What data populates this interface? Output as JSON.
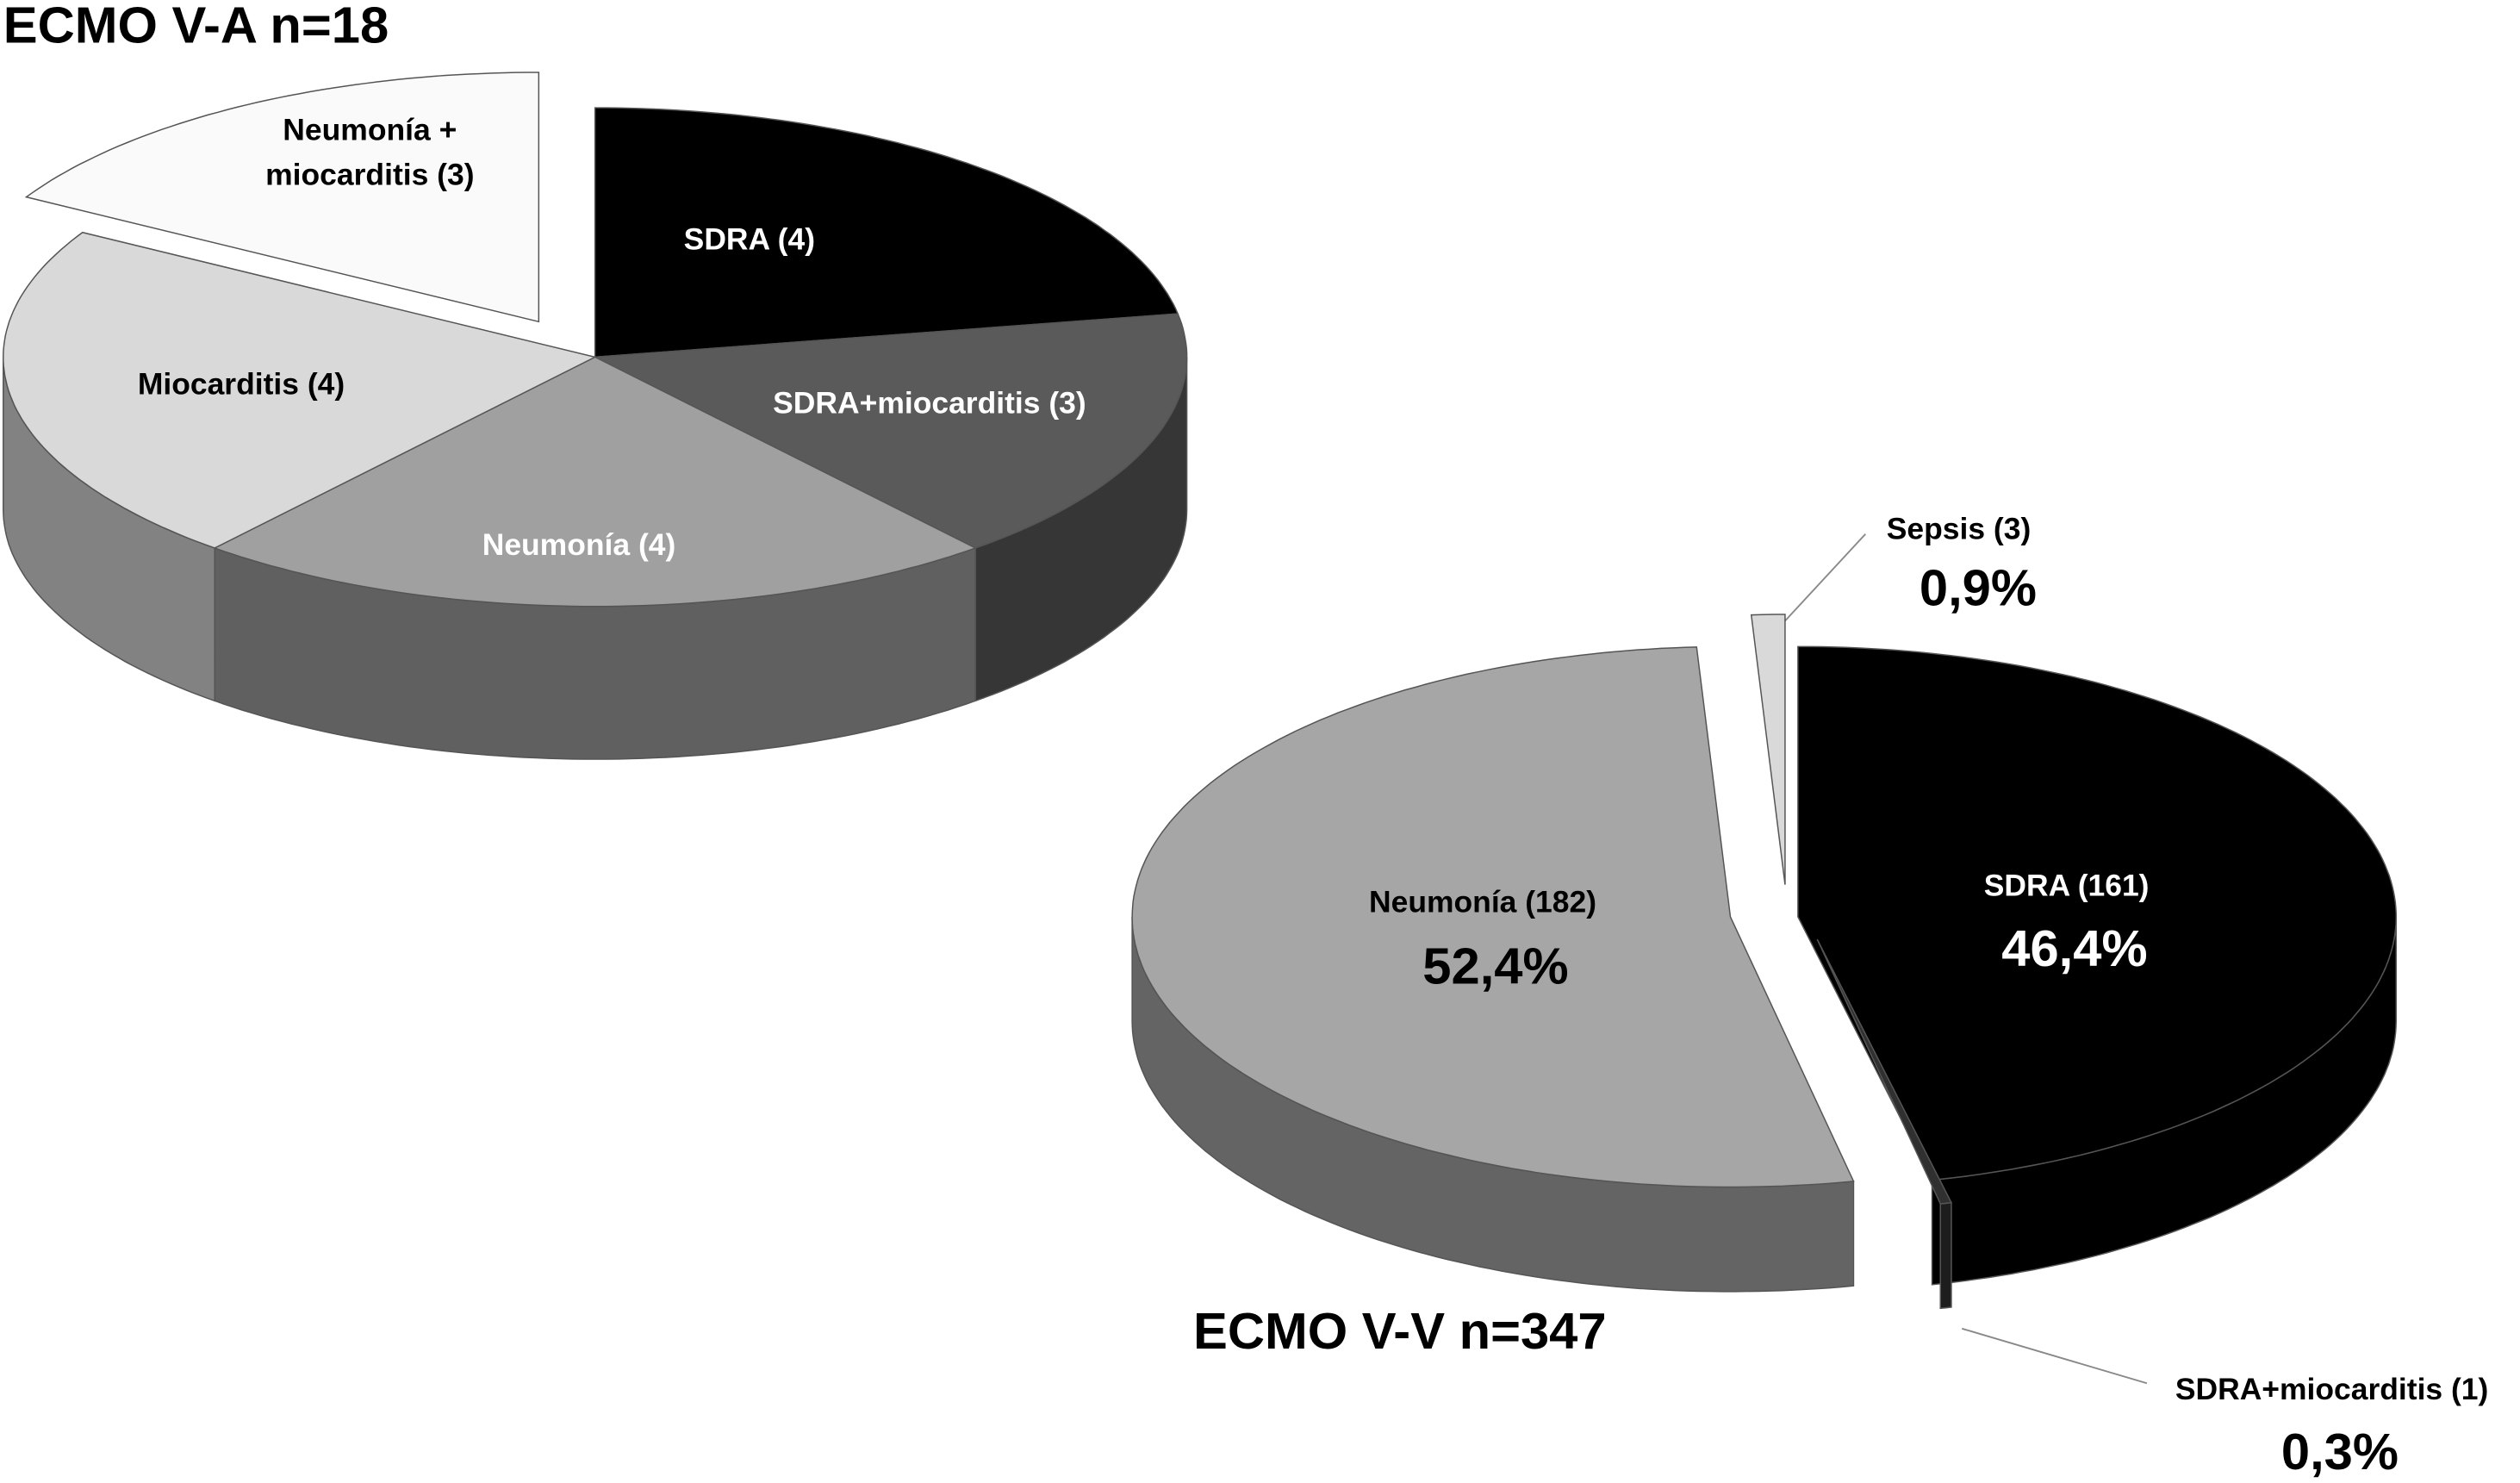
{
  "chart_data": [
    {
      "type": "pie",
      "title": "ECMO V-A n=18",
      "categories": [
        "SDRA (4)",
        "SDRA+miocarditis (3)",
        "Neumonía (4)",
        "Miocarditis (4)",
        "Neumonía + miocarditis (3)"
      ],
      "values": [
        4,
        3,
        4,
        4,
        3
      ],
      "colors": [
        "#000000",
        "#5a5a5a",
        "#a0a0a0",
        "#d9d9d9",
        "#fafafa"
      ]
    },
    {
      "type": "pie",
      "title": "ECMO V-V n=347",
      "categories": [
        "SDRA (161)",
        "SDRA+miocarditis (1)",
        "Neumonía (182)",
        "Sepsis (3)"
      ],
      "values": [
        46.4,
        0.3,
        52.4,
        0.9
      ],
      "value_labels": [
        "46,4%",
        "0,3%",
        "52,4%",
        "0,9%"
      ],
      "colors": [
        "#000000",
        "#303030",
        "#a6a6a6",
        "#d9d9d9"
      ]
    }
  ]
}
